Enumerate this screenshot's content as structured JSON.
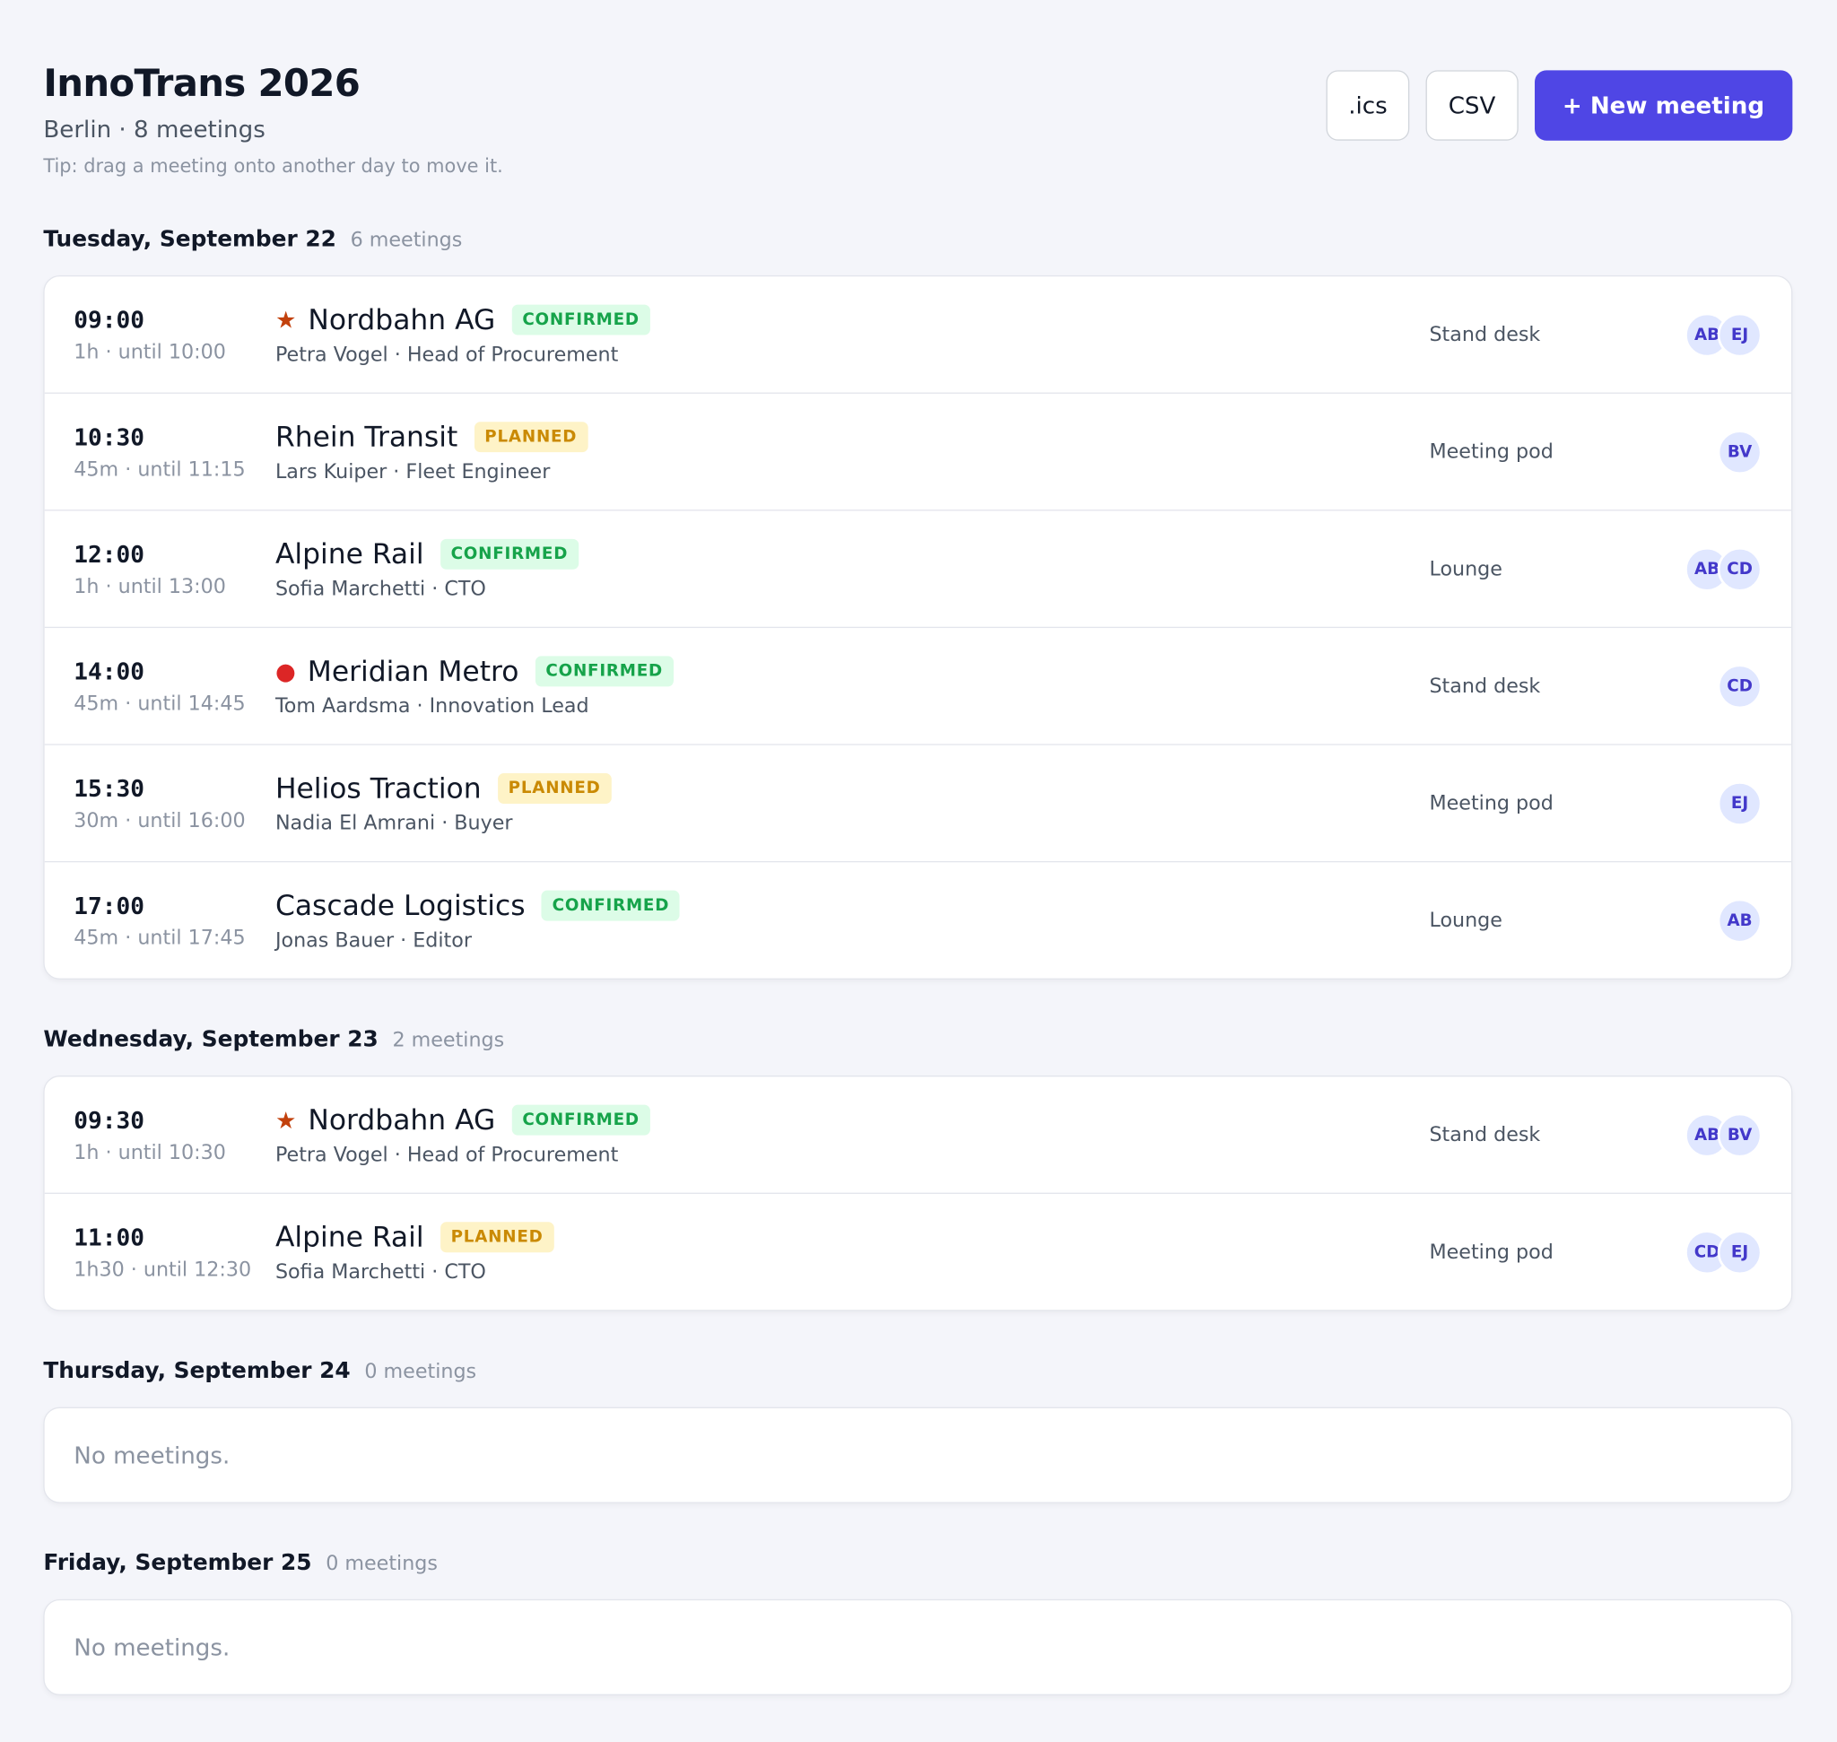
{
  "header": {
    "title": "InnoTrans 2026",
    "subtitle": "Berlin · 8 meetings",
    "tip": "Tip: drag a meeting onto another day to move it.",
    "buttons": [
      ".ics",
      "CSV",
      "+ New meeting"
    ]
  },
  "days": [
    {
      "title": "Tuesday, September 22",
      "count": "6 meetings",
      "meetings": [
        {
          "time": "09:00",
          "duration": "1h · until 10:00",
          "marker": {
            "symbol": "★",
            "color": "#c2410c"
          },
          "company": "Nordbahn AG",
          "status": "CONFIRMED",
          "status_color": "#16a34a",
          "status_bg": "#dcfce7",
          "contact": "Petra Vogel · Head of Procurement",
          "location": "Stand desk",
          "avatars": [
            "AB",
            "EJ"
          ]
        },
        {
          "time": "10:30",
          "duration": "45m · until 11:15",
          "company": "Rhein Transit",
          "status": "PLANNED",
          "status_color": "#ca8a04",
          "status_bg": "#fef3c7",
          "contact": "Lars Kuiper · Fleet Engineer",
          "location": "Meeting pod",
          "avatars": [
            "BV"
          ]
        },
        {
          "time": "12:00",
          "duration": "1h · until 13:00",
          "company": "Alpine Rail",
          "status": "CONFIRMED",
          "status_color": "#16a34a",
          "status_bg": "#dcfce7",
          "contact": "Sofia Marchetti · CTO",
          "location": "Lounge",
          "avatars": [
            "AB",
            "CD"
          ]
        },
        {
          "time": "14:00",
          "duration": "45m · until 14:45",
          "marker": {
            "symbol": "●",
            "color": "#dc2626"
          },
          "company": "Meridian Metro",
          "status": "CONFIRMED",
          "status_color": "#16a34a",
          "status_bg": "#dcfce7",
          "contact": "Tom Aardsma · Innovation Lead",
          "location": "Stand desk",
          "avatars": [
            "CD"
          ]
        },
        {
          "time": "15:30",
          "duration": "30m · until 16:00",
          "company": "Helios Traction",
          "status": "PLANNED",
          "status_color": "#ca8a04",
          "status_bg": "#fef3c7",
          "contact": "Nadia El Amrani · Buyer",
          "location": "Meeting pod",
          "avatars": [
            "EJ"
          ]
        },
        {
          "time": "17:00",
          "duration": "45m · until 17:45",
          "company": "Cascade Logistics",
          "status": "CONFIRMED",
          "status_color": "#16a34a",
          "status_bg": "#dcfce7",
          "contact": "Jonas Bauer · Editor",
          "location": "Lounge",
          "avatars": [
            "AB"
          ]
        }
      ]
    },
    {
      "title": "Wednesday, September 23",
      "count": "2 meetings",
      "meetings": [
        {
          "time": "09:30",
          "duration": "1h · until 10:30",
          "marker": {
            "symbol": "★",
            "color": "#c2410c"
          },
          "company": "Nordbahn AG",
          "status": "CONFIRMED",
          "status_color": "#16a34a",
          "status_bg": "#dcfce7",
          "contact": "Petra Vogel · Head of Procurement",
          "location": "Stand desk",
          "avatars": [
            "AB",
            "BV"
          ]
        },
        {
          "time": "11:00",
          "duration": "1h30 · until 12:30",
          "company": "Alpine Rail",
          "status": "PLANNED",
          "status_color": "#ca8a04",
          "status_bg": "#fef3c7",
          "contact": "Sofia Marchetti · CTO",
          "location": "Meeting pod",
          "avatars": [
            "CD",
            "EJ"
          ]
        }
      ]
    },
    {
      "title": "Thursday, September 24",
      "count": "0 meetings",
      "empty": "No meetings."
    },
    {
      "title": "Friday, September 25",
      "count": "0 meetings",
      "empty": "No meetings."
    }
  ]
}
